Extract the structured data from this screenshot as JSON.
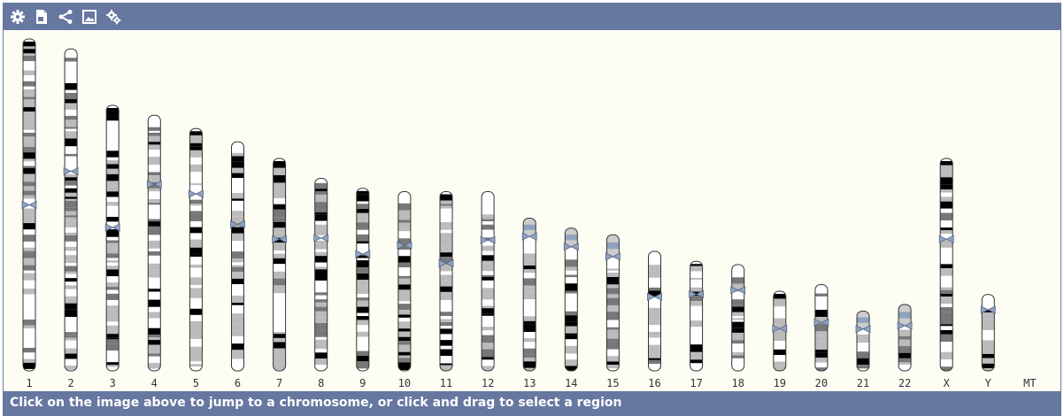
{
  "toolbar": {
    "buttons": [
      {
        "icon": "gear-icon"
      },
      {
        "icon": "export-image-icon"
      },
      {
        "icon": "share-icon"
      },
      {
        "icon": "image-icon"
      },
      {
        "icon": "settings-cog-icon"
      }
    ]
  },
  "footer": {
    "text": "Click on the image above to jump to a chromosome, or click and drag to select a region"
  },
  "colors": {
    "bar": "#6677a0",
    "background": "#fdfdf4",
    "centromere": "#8fa3bf",
    "band_dark": "#000000",
    "band_mid": "#777777",
    "band_light": "#bbbbbb",
    "band_empty": "#ffffff",
    "stalk": "#cccccc"
  },
  "chromosomes": [
    {
      "name": "1",
      "length": 1.0,
      "centromere": 0.5,
      "acro": false
    },
    {
      "name": "2",
      "length": 0.97,
      "centromere": 0.38,
      "acro": false
    },
    {
      "name": "3",
      "length": 0.8,
      "centromere": 0.46,
      "acro": false
    },
    {
      "name": "4",
      "length": 0.77,
      "centromere": 0.27,
      "acro": false
    },
    {
      "name": "5",
      "length": 0.73,
      "centromere": 0.27,
      "acro": false
    },
    {
      "name": "6",
      "length": 0.69,
      "centromere": 0.36,
      "acro": false
    },
    {
      "name": "7",
      "length": 0.64,
      "centromere": 0.38,
      "acro": false
    },
    {
      "name": "8",
      "length": 0.58,
      "centromere": 0.31,
      "acro": false
    },
    {
      "name": "9",
      "length": 0.55,
      "centromere": 0.36,
      "acro": false
    },
    {
      "name": "10",
      "length": 0.54,
      "centromere": 0.3,
      "acro": false
    },
    {
      "name": "11",
      "length": 0.54,
      "centromere": 0.4,
      "acro": false
    },
    {
      "name": "12",
      "length": 0.54,
      "centromere": 0.27,
      "acro": false
    },
    {
      "name": "13",
      "length": 0.46,
      "centromere": 0.12,
      "acro": true
    },
    {
      "name": "14",
      "length": 0.43,
      "centromere": 0.13,
      "acro": true
    },
    {
      "name": "15",
      "length": 0.41,
      "centromere": 0.16,
      "acro": true
    },
    {
      "name": "16",
      "length": 0.36,
      "centromere": 0.38,
      "acro": false
    },
    {
      "name": "17",
      "length": 0.33,
      "centromere": 0.3,
      "acro": false
    },
    {
      "name": "18",
      "length": 0.32,
      "centromere": 0.24,
      "acro": false
    },
    {
      "name": "19",
      "length": 0.24,
      "centromere": 0.47,
      "acro": false
    },
    {
      "name": "20",
      "length": 0.26,
      "centromere": 0.44,
      "acro": false
    },
    {
      "name": "21",
      "length": 0.18,
      "centromere": 0.3,
      "acro": true
    },
    {
      "name": "22",
      "length": 0.2,
      "centromere": 0.32,
      "acro": true
    },
    {
      "name": "X",
      "length": 0.64,
      "centromere": 0.38,
      "acro": false
    },
    {
      "name": "Y",
      "length": 0.23,
      "centromere": 0.2,
      "acro": false
    },
    {
      "name": "MT",
      "length": 0.0,
      "centromere": 0.0,
      "acro": false
    }
  ]
}
